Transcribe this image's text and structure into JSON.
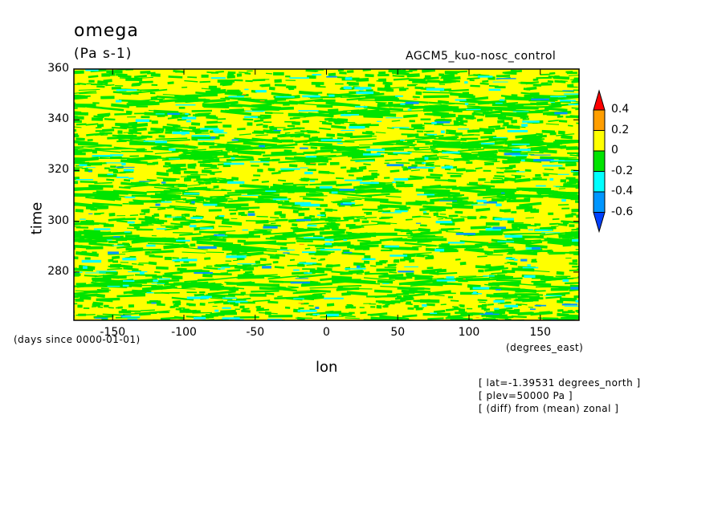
{
  "title": "omega",
  "units": "(Pa s-1)",
  "experiment": "AGCM5_kuo-nosc_control",
  "colors": {
    "yellow": "#ffff00",
    "green": "#00e400",
    "cyan": "#00ffff",
    "blue": "#0096ff",
    "orange": "#ff9e00",
    "red": "#ff0000",
    "darkblue": "#0040ff"
  },
  "chart_data": {
    "type": "heatmap",
    "xlabel": "lon",
    "ylabel": "time",
    "x_units": "(degrees_east)",
    "y_units": "(days since 0000-01-01)",
    "xlim": [
      -177.1875,
      177.1875
    ],
    "ylim": [
      261,
      360
    ],
    "x_ticks": [
      -150,
      -100,
      -50,
      0,
      50,
      100,
      150
    ],
    "y_ticks": [
      280,
      300,
      320,
      340,
      360
    ],
    "x_tick_labels": [
      "-150",
      "-100",
      "-50",
      "0",
      "50",
      "100",
      "150"
    ],
    "y_tick_labels": [
      "280",
      "300",
      "320",
      "340",
      "360"
    ],
    "colorbar": {
      "levels": [
        -0.6,
        -0.4,
        -0.2,
        0,
        0.2,
        0.4
      ],
      "labels": [
        "0.4",
        "0.2",
        "0",
        "-0.2",
        "-0.4",
        "-0.6"
      ],
      "colors": [
        "#0040ff",
        "#0096ff",
        "#00ffff",
        "#00e400",
        "#ffff00",
        "#ff9e00",
        "#ff0000"
      ]
    }
  },
  "info": [
    "[ lat=-1.39531 degrees_north ]",
    "[ plev=50000 Pa ]",
    "[ (diff) from (mean) zonal ]"
  ]
}
